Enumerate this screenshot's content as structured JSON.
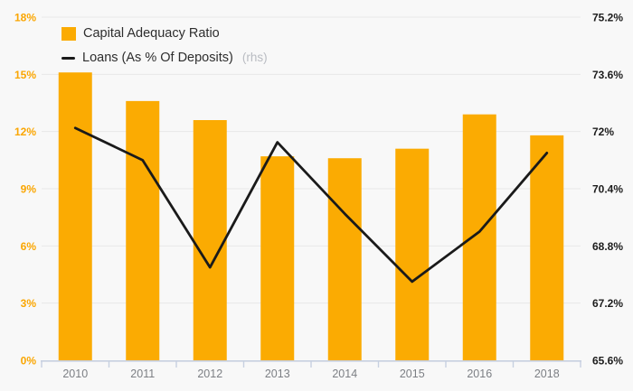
{
  "legend": {
    "items": [
      {
        "label": "Capital Adequacy Ratio",
        "suffix": ""
      },
      {
        "label": "Loans (As % Of Deposits)",
        "suffix": "(rhs)"
      }
    ]
  },
  "colors": {
    "background": "#f8f8f8",
    "bar": "#FBAB02",
    "line": "#1a1a1a",
    "grid": "#e8e8e8",
    "axis": "#c7d0e0",
    "left_axis_text": "#FAA602",
    "right_axis_text": "#1d1d1d",
    "year_text": "#7c7f84",
    "legend_text": "#2e2e2e",
    "legend_suffix_text": "#b9bcc2"
  },
  "chart_data": {
    "type": "bar+line",
    "categories": [
      "2010",
      "2011",
      "2012",
      "2013",
      "2014",
      "2015",
      "2016",
      "2018"
    ],
    "series": [
      {
        "name": "Capital Adequacy Ratio",
        "type": "bar",
        "axis": "left",
        "color": "#FBAB02",
        "values": [
          15.1,
          13.6,
          12.6,
          10.7,
          10.6,
          11.1,
          12.9,
          11.8
        ]
      },
      {
        "name": "Loans (As % Of Deposits)",
        "type": "line",
        "axis": "right",
        "color": "#1a1a1a",
        "values": [
          72.1,
          71.2,
          68.2,
          71.7,
          69.7,
          67.8,
          69.2,
          71.4
        ]
      }
    ],
    "left_axis": {
      "min": 0,
      "max": 18,
      "step": 3,
      "tick_labels": [
        "0%",
        "3%",
        "6%",
        "9%",
        "12%",
        "15%",
        "18%"
      ]
    },
    "right_axis": {
      "min": 65.6,
      "max": 75.2,
      "step": 1.6,
      "tick_labels": [
        "65.6%",
        "67.2%",
        "68.8%",
        "70.4%",
        "72%",
        "73.6%",
        "75.2%"
      ]
    },
    "grid": true,
    "legend_position": "top-left"
  }
}
